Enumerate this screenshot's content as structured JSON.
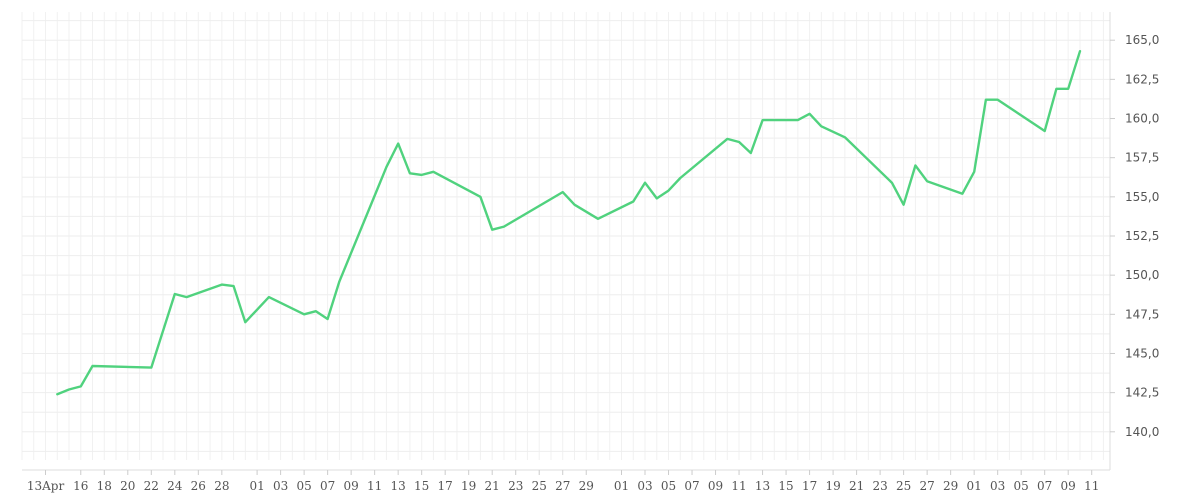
{
  "chart_data": {
    "type": "line",
    "title": "",
    "xlabel": "",
    "ylabel": "",
    "ylim": [
      138.2,
      166.8
    ],
    "grid": true,
    "y_axis_side": "right",
    "y_ticks": [
      "140,0",
      "142,5",
      "145,0",
      "147,5",
      "150,0",
      "152,5",
      "155,0",
      "157,5",
      "160,0",
      "162,5",
      "165,0"
    ],
    "x_ticks": [
      "13Apr",
      "16",
      "18",
      "20",
      "22",
      "24",
      "26",
      "28",
      "01",
      "03",
      "05",
      "07",
      "09",
      "11",
      "13",
      "15",
      "17",
      "19",
      "21",
      "23",
      "25",
      "27",
      "29",
      "01",
      "03",
      "05",
      "07",
      "09",
      "11",
      "13",
      "15",
      "17",
      "19",
      "21",
      "23",
      "25",
      "27",
      "29",
      "01",
      "03",
      "05",
      "07",
      "09",
      "11"
    ],
    "series": [
      {
        "color": "#50d27e",
        "points": [
          [
            "2021-04-14",
            142.4
          ],
          [
            "2021-04-15",
            142.7
          ],
          [
            "2021-04-16",
            142.9
          ],
          [
            "2021-04-17",
            144.2
          ],
          [
            "2021-04-22",
            144.1
          ],
          [
            "2021-04-24",
            148.8
          ],
          [
            "2021-04-25",
            148.6
          ],
          [
            "2021-04-28",
            149.4
          ],
          [
            "2021-04-29",
            149.3
          ],
          [
            "2021-04-30",
            147.0
          ],
          [
            "2021-05-02",
            148.6
          ],
          [
            "2021-05-05",
            147.5
          ],
          [
            "2021-05-06",
            147.7
          ],
          [
            "2021-05-07",
            147.2
          ],
          [
            "2021-05-08",
            149.6
          ],
          [
            "2021-05-12",
            156.9
          ],
          [
            "2021-05-13",
            158.4
          ],
          [
            "2021-05-14",
            156.5
          ],
          [
            "2021-05-15",
            156.4
          ],
          [
            "2021-05-16",
            156.6
          ],
          [
            "2021-05-20",
            155.0
          ],
          [
            "2021-05-21",
            152.9
          ],
          [
            "2021-05-22",
            153.1
          ],
          [
            "2021-05-27",
            155.3
          ],
          [
            "2021-05-28",
            154.5
          ],
          [
            "2021-05-30",
            153.6
          ],
          [
            "2021-06-02",
            154.7
          ],
          [
            "2021-06-03",
            155.9
          ],
          [
            "2021-06-04",
            154.9
          ],
          [
            "2021-06-05",
            155.4
          ],
          [
            "2021-06-06",
            156.2
          ],
          [
            "2021-06-10",
            158.7
          ],
          [
            "2021-06-11",
            158.5
          ],
          [
            "2021-06-12",
            157.8
          ],
          [
            "2021-06-13",
            159.9
          ],
          [
            "2021-06-16",
            159.9
          ],
          [
            "2021-06-17",
            160.3
          ],
          [
            "2021-06-18",
            159.5
          ],
          [
            "2021-06-20",
            158.8
          ],
          [
            "2021-06-24",
            155.9
          ],
          [
            "2021-06-25",
            154.5
          ],
          [
            "2021-06-26",
            157.0
          ],
          [
            "2021-06-27",
            156.0
          ],
          [
            "2021-06-30",
            155.2
          ],
          [
            "2021-07-01",
            156.6
          ],
          [
            "2021-07-02",
            161.2
          ],
          [
            "2021-07-03",
            161.2
          ],
          [
            "2021-07-07",
            159.2
          ],
          [
            "2021-07-08",
            161.9
          ],
          [
            "2021-07-09",
            161.9
          ],
          [
            "2021-07-10",
            164.3
          ]
        ]
      }
    ]
  }
}
